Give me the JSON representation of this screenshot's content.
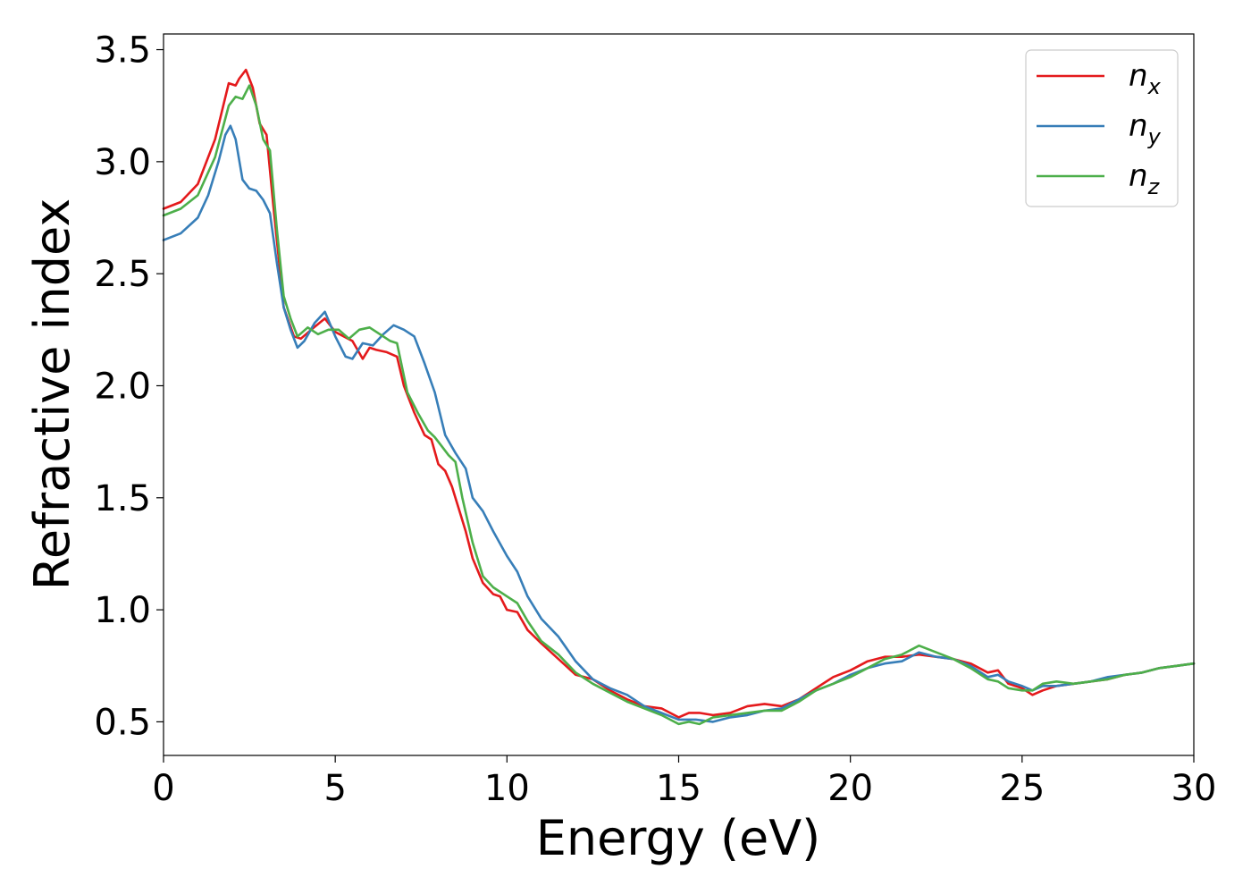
{
  "chart_data": {
    "type": "line",
    "title": "",
    "xlabel": "Energy (eV)",
    "ylabel": "Refractive index",
    "xlim": [
      0,
      30
    ],
    "ylim": [
      0.35,
      3.57
    ],
    "xticks": [
      0,
      5,
      10,
      15,
      20,
      25,
      30
    ],
    "yticks": [
      0.5,
      1.0,
      1.5,
      2.0,
      2.5,
      3.0,
      3.5
    ],
    "xtick_labels": [
      "0",
      "5",
      "10",
      "15",
      "20",
      "25",
      "30"
    ],
    "ytick_labels": [
      "0.5",
      "1.0",
      "1.5",
      "2.0",
      "2.5",
      "3.0",
      "3.5"
    ],
    "grid": false,
    "legend": {
      "position": "top-right"
    },
    "series": [
      {
        "name": "n_x",
        "label_base": "n",
        "label_sub": "x",
        "color": "#e41a1c",
        "x": [
          0,
          0.5,
          1.0,
          1.5,
          1.9,
          2.1,
          2.2,
          2.4,
          2.6,
          2.8,
          3.0,
          3.2,
          3.5,
          3.8,
          4.0,
          4.3,
          4.7,
          5.0,
          5.5,
          5.8,
          6.0,
          6.2,
          6.5,
          6.8,
          7.0,
          7.3,
          7.6,
          7.8,
          8.0,
          8.2,
          8.4,
          8.6,
          8.8,
          9.0,
          9.3,
          9.6,
          9.8,
          10.0,
          10.3,
          10.6,
          11.0,
          11.5,
          12.0,
          12.5,
          13.0,
          13.5,
          14.0,
          14.5,
          15.0,
          15.3,
          15.6,
          16.0,
          16.5,
          17.0,
          17.5,
          18.0,
          18.5,
          19.0,
          19.5,
          20.0,
          20.5,
          21.0,
          21.5,
          22.0,
          22.5,
          23.0,
          23.5,
          24.0,
          24.3,
          24.6,
          25.0,
          25.3,
          25.6,
          26.0,
          26.5,
          27.0,
          27.5,
          28.0,
          28.5,
          29.0,
          29.5,
          30.0
        ],
        "y": [
          2.79,
          2.82,
          2.9,
          3.1,
          3.35,
          3.34,
          3.37,
          3.41,
          3.33,
          3.17,
          3.12,
          2.8,
          2.35,
          2.22,
          2.21,
          2.25,
          2.3,
          2.24,
          2.2,
          2.12,
          2.17,
          2.16,
          2.15,
          2.13,
          2.0,
          1.88,
          1.78,
          1.76,
          1.65,
          1.62,
          1.55,
          1.45,
          1.35,
          1.23,
          1.12,
          1.07,
          1.06,
          1.0,
          0.99,
          0.91,
          0.85,
          0.78,
          0.71,
          0.69,
          0.64,
          0.6,
          0.57,
          0.56,
          0.52,
          0.54,
          0.54,
          0.53,
          0.54,
          0.57,
          0.58,
          0.57,
          0.6,
          0.65,
          0.7,
          0.73,
          0.77,
          0.79,
          0.79,
          0.8,
          0.79,
          0.78,
          0.76,
          0.72,
          0.73,
          0.67,
          0.65,
          0.62,
          0.64,
          0.66,
          0.67,
          0.68,
          0.69,
          0.71,
          0.72,
          0.74,
          0.75,
          0.76
        ]
      },
      {
        "name": "n_y",
        "label_base": "n",
        "label_sub": "y",
        "color": "#377eb8",
        "x": [
          0,
          0.5,
          1.0,
          1.3,
          1.6,
          1.8,
          1.95,
          2.1,
          2.3,
          2.5,
          2.7,
          2.9,
          3.1,
          3.3,
          3.5,
          3.7,
          3.9,
          4.1,
          4.4,
          4.7,
          5.0,
          5.3,
          5.5,
          5.8,
          6.1,
          6.4,
          6.7,
          7.0,
          7.3,
          7.6,
          7.9,
          8.2,
          8.5,
          8.8,
          9.0,
          9.3,
          9.6,
          10.0,
          10.3,
          10.6,
          11.0,
          11.5,
          12.0,
          12.5,
          13.0,
          13.5,
          14.0,
          14.5,
          15.0,
          15.5,
          16.0,
          16.5,
          17.0,
          17.5,
          18.0,
          18.5,
          19.0,
          19.5,
          20.0,
          20.5,
          21.0,
          21.5,
          22.0,
          22.5,
          23.0,
          23.5,
          24.0,
          24.3,
          24.6,
          25.0,
          25.3,
          25.6,
          26.0,
          26.5,
          27.0,
          27.5,
          28.0,
          28.5,
          29.0,
          29.5,
          30.0
        ],
        "y": [
          2.65,
          2.68,
          2.75,
          2.85,
          3.0,
          3.12,
          3.16,
          3.1,
          2.92,
          2.88,
          2.87,
          2.83,
          2.77,
          2.55,
          2.35,
          2.25,
          2.17,
          2.2,
          2.28,
          2.33,
          2.22,
          2.13,
          2.12,
          2.19,
          2.18,
          2.23,
          2.27,
          2.25,
          2.22,
          2.1,
          1.97,
          1.78,
          1.7,
          1.63,
          1.5,
          1.44,
          1.35,
          1.24,
          1.17,
          1.06,
          0.96,
          0.88,
          0.77,
          0.69,
          0.65,
          0.62,
          0.57,
          0.54,
          0.51,
          0.51,
          0.5,
          0.52,
          0.53,
          0.55,
          0.56,
          0.6,
          0.64,
          0.67,
          0.71,
          0.74,
          0.76,
          0.77,
          0.81,
          0.79,
          0.78,
          0.75,
          0.7,
          0.71,
          0.68,
          0.66,
          0.64,
          0.66,
          0.66,
          0.67,
          0.68,
          0.7,
          0.71,
          0.72,
          0.74,
          0.75,
          0.76
        ]
      },
      {
        "name": "n_z",
        "label_base": "n",
        "label_sub": "z",
        "color": "#4daf4a",
        "x": [
          0,
          0.5,
          1.0,
          1.5,
          1.9,
          2.1,
          2.3,
          2.5,
          2.7,
          2.9,
          3.1,
          3.3,
          3.5,
          3.7,
          3.9,
          4.2,
          4.5,
          4.8,
          5.1,
          5.4,
          5.7,
          6.0,
          6.3,
          6.6,
          6.8,
          7.1,
          7.4,
          7.7,
          7.9,
          8.1,
          8.3,
          8.5,
          8.7,
          9.0,
          9.3,
          9.6,
          10.0,
          10.3,
          10.6,
          11.0,
          11.5,
          12.0,
          12.5,
          13.0,
          13.5,
          14.0,
          14.5,
          15.0,
          15.3,
          15.6,
          16.0,
          16.5,
          17.0,
          17.5,
          18.0,
          18.5,
          19.0,
          19.5,
          20.0,
          20.5,
          21.0,
          21.5,
          22.0,
          22.5,
          23.0,
          23.5,
          24.0,
          24.3,
          24.6,
          25.0,
          25.3,
          25.6,
          26.0,
          26.5,
          27.0,
          27.5,
          28.0,
          28.5,
          29.0,
          29.5,
          30.0
        ],
        "y": [
          2.76,
          2.79,
          2.85,
          3.02,
          3.25,
          3.29,
          3.28,
          3.34,
          3.25,
          3.1,
          3.05,
          2.7,
          2.4,
          2.3,
          2.22,
          2.26,
          2.23,
          2.25,
          2.25,
          2.21,
          2.25,
          2.26,
          2.23,
          2.2,
          2.19,
          1.97,
          1.88,
          1.8,
          1.77,
          1.73,
          1.69,
          1.66,
          1.5,
          1.3,
          1.15,
          1.1,
          1.06,
          1.03,
          0.95,
          0.86,
          0.8,
          0.72,
          0.67,
          0.63,
          0.59,
          0.56,
          0.53,
          0.49,
          0.5,
          0.49,
          0.52,
          0.53,
          0.54,
          0.55,
          0.55,
          0.59,
          0.64,
          0.67,
          0.7,
          0.74,
          0.78,
          0.8,
          0.84,
          0.81,
          0.78,
          0.74,
          0.69,
          0.68,
          0.65,
          0.64,
          0.64,
          0.67,
          0.68,
          0.67,
          0.68,
          0.69,
          0.71,
          0.72,
          0.74,
          0.75,
          0.76
        ]
      }
    ]
  }
}
